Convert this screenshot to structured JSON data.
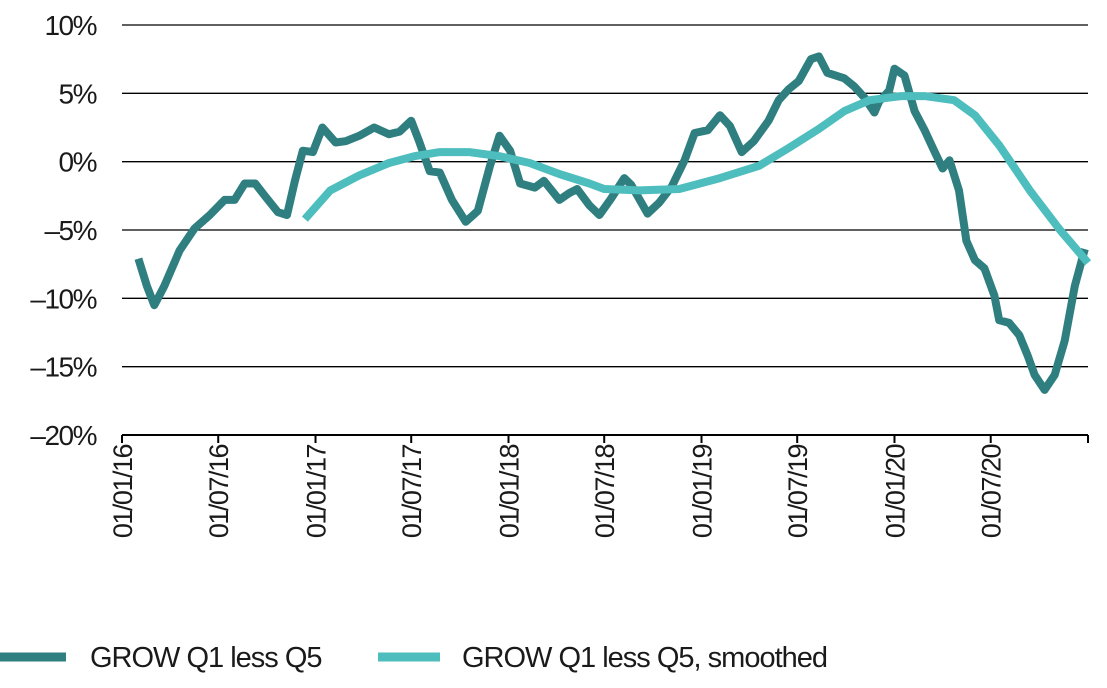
{
  "chart_data": {
    "type": "line",
    "title": "",
    "xlabel": "",
    "ylabel": "",
    "xlim": [
      "2016-01-01",
      "2021-01-01"
    ],
    "ylim": [
      -20,
      10
    ],
    "y_ticks": [
      10,
      5,
      0,
      -5,
      -10,
      -15,
      -20
    ],
    "y_tick_labels": [
      "10%",
      "5%",
      "0%",
      "–5%",
      "–10%",
      "–15%",
      "–20%"
    ],
    "x_ticks": [
      "2016-01-01",
      "2016-07-01",
      "2017-01-01",
      "2017-07-01",
      "2018-01-01",
      "2018-07-01",
      "2019-01-01",
      "2019-07-01",
      "2020-01-01",
      "2020-07-01"
    ],
    "x_tick_labels": [
      "01/01/16",
      "01/07/16",
      "01/01/17",
      "01/07/17",
      "01/01/18",
      "01/07/18",
      "01/01/19",
      "01/07/19",
      "01/01/20",
      "01/07/20"
    ],
    "grid": "horizontal",
    "legend_position": "bottom",
    "series": [
      {
        "name": "GROW Q1 less Q5",
        "color": "#2f7f81",
        "points": [
          [
            "2016-02-01",
            -7.1
          ],
          [
            "2016-02-17",
            -9.1
          ],
          [
            "2016-03-02",
            -10.5
          ],
          [
            "2016-03-21",
            -9.1
          ],
          [
            "2016-04-19",
            -6.5
          ],
          [
            "2016-05-17",
            -4.9
          ],
          [
            "2016-06-15",
            -3.9
          ],
          [
            "2016-07-13",
            -2.8
          ],
          [
            "2016-08-01",
            -2.8
          ],
          [
            "2016-08-20",
            -1.6
          ],
          [
            "2016-09-09",
            -1.6
          ],
          [
            "2016-09-27",
            -2.5
          ],
          [
            "2016-10-22",
            -3.7
          ],
          [
            "2016-11-08",
            -3.9
          ],
          [
            "2016-11-23",
            -1.4
          ],
          [
            "2016-12-08",
            0.8
          ],
          [
            "2016-12-27",
            0.7
          ],
          [
            "2017-01-14",
            2.5
          ],
          [
            "2017-02-08",
            1.4
          ],
          [
            "2017-02-27",
            1.5
          ],
          [
            "2017-03-25",
            1.9
          ],
          [
            "2017-04-22",
            2.5
          ],
          [
            "2017-05-20",
            2.0
          ],
          [
            "2017-06-09",
            2.2
          ],
          [
            "2017-07-01",
            3.0
          ],
          [
            "2017-07-16",
            1.5
          ],
          [
            "2017-08-05",
            -0.7
          ],
          [
            "2017-08-24",
            -0.8
          ],
          [
            "2017-09-16",
            -2.8
          ],
          [
            "2017-10-12",
            -4.4
          ],
          [
            "2017-11-04",
            -3.6
          ],
          [
            "2017-11-27",
            -0.3
          ],
          [
            "2017-12-15",
            1.9
          ],
          [
            "2018-01-04",
            0.8
          ],
          [
            "2018-01-23",
            -1.6
          ],
          [
            "2018-02-20",
            -1.9
          ],
          [
            "2018-03-09",
            -1.4
          ],
          [
            "2018-04-07",
            -2.8
          ],
          [
            "2018-04-26",
            -2.3
          ],
          [
            "2018-05-11",
            -2.0
          ],
          [
            "2018-06-03",
            -3.2
          ],
          [
            "2018-06-22",
            -3.9
          ],
          [
            "2018-07-14",
            -2.7
          ],
          [
            "2018-08-08",
            -1.2
          ],
          [
            "2018-08-21",
            -1.7
          ],
          [
            "2018-09-21",
            -3.8
          ],
          [
            "2018-10-13",
            -3.0
          ],
          [
            "2018-11-06",
            -1.8
          ],
          [
            "2018-11-30",
            0.1
          ],
          [
            "2018-12-19",
            2.1
          ],
          [
            "2019-01-13",
            2.3
          ],
          [
            "2019-02-05",
            3.4
          ],
          [
            "2019-02-24",
            2.6
          ],
          [
            "2019-03-18",
            0.7
          ],
          [
            "2019-04-10",
            1.5
          ],
          [
            "2019-05-08",
            3.0
          ],
          [
            "2019-05-27",
            4.5
          ],
          [
            "2019-06-15",
            5.3
          ],
          [
            "2019-07-04",
            5.9
          ],
          [
            "2019-07-27",
            7.5
          ],
          [
            "2019-08-11",
            7.7
          ],
          [
            "2019-08-27",
            6.5
          ],
          [
            "2019-09-28",
            6.1
          ],
          [
            "2019-10-17",
            5.5
          ],
          [
            "2019-11-05",
            4.7
          ],
          [
            "2019-11-24",
            3.6
          ],
          [
            "2019-12-03",
            4.4
          ],
          [
            "2019-12-22",
            5.2
          ],
          [
            "2020-01-01",
            6.8
          ],
          [
            "2020-01-20",
            6.3
          ],
          [
            "2020-02-08",
            3.7
          ],
          [
            "2020-02-27",
            2.3
          ],
          [
            "2020-03-16",
            0.8
          ],
          [
            "2020-04-01",
            -0.5
          ],
          [
            "2020-04-14",
            0.1
          ],
          [
            "2020-05-02",
            -2.1
          ],
          [
            "2020-05-16",
            -5.8
          ],
          [
            "2020-06-01",
            -7.2
          ],
          [
            "2020-06-19",
            -7.8
          ],
          [
            "2020-07-08",
            -9.8
          ],
          [
            "2020-07-17",
            -11.6
          ],
          [
            "2020-08-05",
            -11.8
          ],
          [
            "2020-08-24",
            -12.7
          ],
          [
            "2020-09-09",
            -14.2
          ],
          [
            "2020-09-22",
            -15.6
          ],
          [
            "2020-10-11",
            -16.7
          ],
          [
            "2020-10-30",
            -15.6
          ],
          [
            "2020-11-18",
            -13.1
          ],
          [
            "2020-12-07",
            -9.1
          ],
          [
            "2020-12-26",
            -6.4
          ]
        ]
      },
      {
        "name": "GROW Q1 less Q5, smoothed",
        "color": "#4dbdbe",
        "points": [
          [
            "2016-12-12",
            -4.2
          ],
          [
            "2017-01-29",
            -2.1
          ],
          [
            "2017-03-25",
            -1.0
          ],
          [
            "2017-05-20",
            -0.1
          ],
          [
            "2017-07-07",
            0.4
          ],
          [
            "2017-08-24",
            0.7
          ],
          [
            "2017-10-19",
            0.7
          ],
          [
            "2017-12-15",
            0.4
          ],
          [
            "2018-02-10",
            -0.1
          ],
          [
            "2018-04-07",
            -0.9
          ],
          [
            "2018-06-03",
            -1.6
          ],
          [
            "2018-07-01",
            -2.0
          ],
          [
            "2018-09-06",
            -2.1
          ],
          [
            "2018-11-20",
            -2.0
          ],
          [
            "2019-02-05",
            -1.2
          ],
          [
            "2019-04-20",
            -0.3
          ],
          [
            "2019-06-15",
            1.0
          ],
          [
            "2019-08-11",
            2.4
          ],
          [
            "2019-09-28",
            3.7
          ],
          [
            "2019-11-15",
            4.5
          ],
          [
            "2020-01-13",
            4.8
          ],
          [
            "2020-02-27",
            4.8
          ],
          [
            "2020-04-23",
            4.5
          ],
          [
            "2020-06-01",
            3.4
          ],
          [
            "2020-07-17",
            1.2
          ],
          [
            "2020-09-13",
            -2.1
          ],
          [
            "2020-11-09",
            -5.0
          ],
          [
            "2021-01-01",
            -7.4
          ]
        ]
      }
    ]
  }
}
